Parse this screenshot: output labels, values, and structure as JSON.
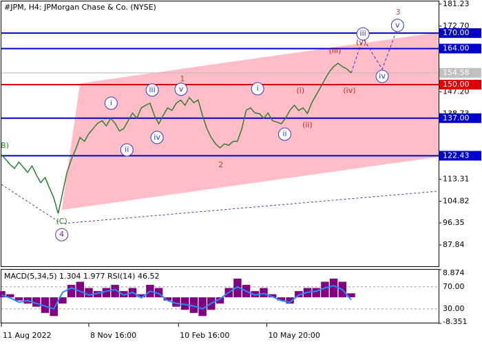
{
  "chart_data": [
    {
      "type": "line",
      "title": "#JPM, H4:  JPMorgan Chase & Co. (NYSE)",
      "x": [
        0,
        1,
        2,
        3,
        4,
        5,
        6,
        7,
        8,
        9,
        10,
        11,
        12,
        13,
        14,
        15,
        16,
        17,
        18,
        19,
        20,
        21,
        22,
        23,
        24,
        25,
        26,
        27,
        28,
        29,
        30,
        31,
        32,
        33,
        34,
        35,
        36,
        37,
        38,
        39,
        40,
        41,
        42,
        43,
        44,
        45,
        46,
        47,
        48,
        49,
        50,
        51,
        52,
        53,
        54,
        55,
        56,
        57,
        58,
        59,
        60,
        61,
        62,
        63,
        64,
        65,
        66,
        67,
        68,
        69,
        70,
        71,
        72,
        73,
        74,
        75,
        76,
        77,
        78,
        79,
        80
      ],
      "values": [
        122.8,
        121,
        119,
        117.5,
        120,
        118,
        116,
        118.5,
        115,
        112,
        114,
        110,
        106,
        100,
        108,
        116,
        121,
        125,
        129.5,
        128,
        131,
        133,
        135,
        136,
        134,
        137,
        135,
        132,
        133,
        136,
        139,
        137,
        141,
        142,
        142.8,
        138,
        134.8,
        138,
        141,
        140,
        142.8,
        144,
        142,
        145,
        143,
        144.1,
        138,
        133,
        129.5,
        127,
        125.5,
        127,
        126.5,
        128,
        128.1,
        133,
        140.1,
        141,
        139,
        138.8,
        137,
        139,
        136,
        135.5,
        134.8,
        137,
        140.1,
        142,
        140,
        141,
        138.8,
        143,
        146,
        149,
        152.1,
        155,
        157,
        158.3,
        157,
        156.1,
        154.58
      ],
      "color": "#2e7d32",
      "xlim": [
        0,
        100
      ],
      "ylim": [
        79.3,
        182.3
      ],
      "xticks": [
        {
          "value": 0,
          "label": "11 Aug 2022"
        },
        {
          "value": 20,
          "label": "8 Nov 16:00"
        },
        {
          "value": 40.5,
          "label": "10 Feb 16:00"
        },
        {
          "value": 60.7,
          "label": "10 May 20:00"
        }
      ],
      "yticks": [
        181.23,
        {
          "value": 172.7,
          "label": "172.70"
        },
        {
          "value": 147.2,
          "label": "147.20"
        },
        138.73,
        113.31,
        104.82,
        96.35,
        87.84
      ],
      "levels": [
        {
          "value": 170,
          "label": "170.00",
          "color": "#0000cc"
        },
        {
          "value": 164,
          "label": "164.00",
          "color": "#0000cc"
        },
        {
          "value": 150,
          "label": "150.00",
          "color": "#dd0000"
        },
        {
          "value": 137,
          "label": "137.00",
          "color": "#0000cc"
        },
        {
          "value": 122.43,
          "label": "122.43",
          "color": "#0000cc"
        }
      ],
      "last_price": 154.58,
      "channel": {
        "x": [
          13.8,
          18,
          100,
          100
        ],
        "y": [
          101.4,
          150.5,
          170.3,
          122
        ],
        "color": "#ffb6c1"
      },
      "trendline": {
        "x": [
          0,
          13.8,
          100
        ],
        "y": [
          111.3,
          96.1,
          108.7
        ],
        "color": "#6a2c91"
      },
      "projection": {
        "x": [
          80,
          82.7,
          87.1,
          90.6
        ],
        "y": [
          154.58,
          168,
          156,
          172
        ],
        "color": "#3333cc"
      },
      "annotations": [
        {
          "text": "B)",
          "x": 0.8,
          "y": 126.2,
          "color": "#228b22",
          "circle": false
        },
        {
          "text": "(C)",
          "x": 13.8,
          "y": 96.9,
          "color": "#228b22",
          "circle": false
        },
        {
          "text": "4",
          "x": 13.8,
          "y": 91.8,
          "color": "#6a2c91",
          "circle": true
        },
        {
          "text": "i",
          "x": 25.1,
          "y": 142.8,
          "color": "#3333cc",
          "circle": true
        },
        {
          "text": "ii",
          "x": 28.7,
          "y": 124.7,
          "color": "#3333cc",
          "circle": true
        },
        {
          "text": "iii",
          "x": 34.5,
          "y": 147.9,
          "color": "#3333cc",
          "circle": true
        },
        {
          "text": "iv",
          "x": 35.6,
          "y": 129.5,
          "color": "#3333cc",
          "circle": true
        },
        {
          "text": "v",
          "x": 41.1,
          "y": 148.2,
          "color": "#3333cc",
          "circle": true
        },
        {
          "text": "1",
          "x": 41.4,
          "y": 152.2,
          "color": "#8b5a2b",
          "circle": false
        },
        {
          "text": "2",
          "x": 50.2,
          "y": 118.8,
          "color": "#a0522d",
          "circle": false
        },
        {
          "text": "i",
          "x": 58.6,
          "y": 148.4,
          "color": "#3333cc",
          "circle": true
        },
        {
          "text": "ii",
          "x": 64.8,
          "y": 130.8,
          "color": "#3333cc",
          "circle": true
        },
        {
          "text": "(i)",
          "x": 68.4,
          "y": 147.6,
          "color": "#cc2222",
          "circle": false
        },
        {
          "text": "(ii)",
          "x": 70,
          "y": 134.3,
          "color": "#cc2222",
          "circle": false
        },
        {
          "text": "(iii)",
          "x": 76.3,
          "y": 163.1,
          "color": "#cc2222",
          "circle": false
        },
        {
          "text": "(iv)",
          "x": 79.6,
          "y": 147.6,
          "color": "#cc2222",
          "circle": false
        },
        {
          "text": "(v)",
          "x": 82.3,
          "y": 166.3,
          "color": "#cc2222",
          "circle": false
        },
        {
          "text": "iii",
          "x": 82.7,
          "y": 169.7,
          "color": "#3333cc",
          "circle": true
        },
        {
          "text": "iv",
          "x": 87.1,
          "y": 153.2,
          "color": "#3333cc",
          "circle": true
        },
        {
          "text": "v",
          "x": 90.6,
          "y": 173,
          "color": "#3333cc",
          "circle": true
        },
        {
          "text": "3",
          "x": 90.7,
          "y": 178,
          "color": "#a0522d",
          "circle": false
        }
      ]
    },
    {
      "type": "bar",
      "title": "MACD(5,34,5) 1.304 1.977 RSI(14) 46.52",
      "x": [
        0,
        2,
        4,
        6,
        8,
        10,
        12,
        14,
        16,
        18,
        20,
        22,
        24,
        26,
        28,
        30,
        32,
        34,
        36,
        38,
        40,
        42,
        44,
        46,
        48,
        50,
        52,
        54,
        56,
        58,
        60,
        62,
        64,
        66,
        68,
        70,
        72,
        74,
        76,
        78,
        80
      ],
      "xlim": [
        0,
        100
      ],
      "ylim": [
        -8.351,
        8.874
      ],
      "yticks": [
        8.874,
        -8.351
      ],
      "y2lim": [
        3.75,
        101
      ],
      "y2ticks": [
        {
          "value": 70,
          "label": "70.00"
        },
        {
          "value": 30,
          "label": "30.00"
        }
      ],
      "series": [
        {
          "color": "#800080",
          "values": [
            2,
            1,
            -1,
            -2,
            -3,
            -5,
            -6,
            -2,
            4,
            5,
            3,
            2,
            3,
            4,
            2,
            3,
            1,
            4,
            3,
            -1,
            -3,
            -4,
            -5,
            -6,
            -4,
            -2,
            3,
            6,
            4,
            2,
            3,
            1,
            -1,
            -2,
            2,
            3,
            3,
            5,
            6,
            5,
            1.3
          ]
        },
        {
          "color": "#1e90ff",
          "axis": "y2",
          "values": [
            55,
            50,
            42,
            45,
            40,
            35,
            30,
            60,
            68,
            62,
            55,
            58,
            62,
            65,
            55,
            60,
            50,
            62,
            58,
            45,
            40,
            38,
            35,
            30,
            40,
            48,
            60,
            70,
            62,
            55,
            58,
            52,
            45,
            42,
            55,
            60,
            62,
            68,
            72,
            65,
            46.52
          ]
        }
      ]
    }
  ]
}
